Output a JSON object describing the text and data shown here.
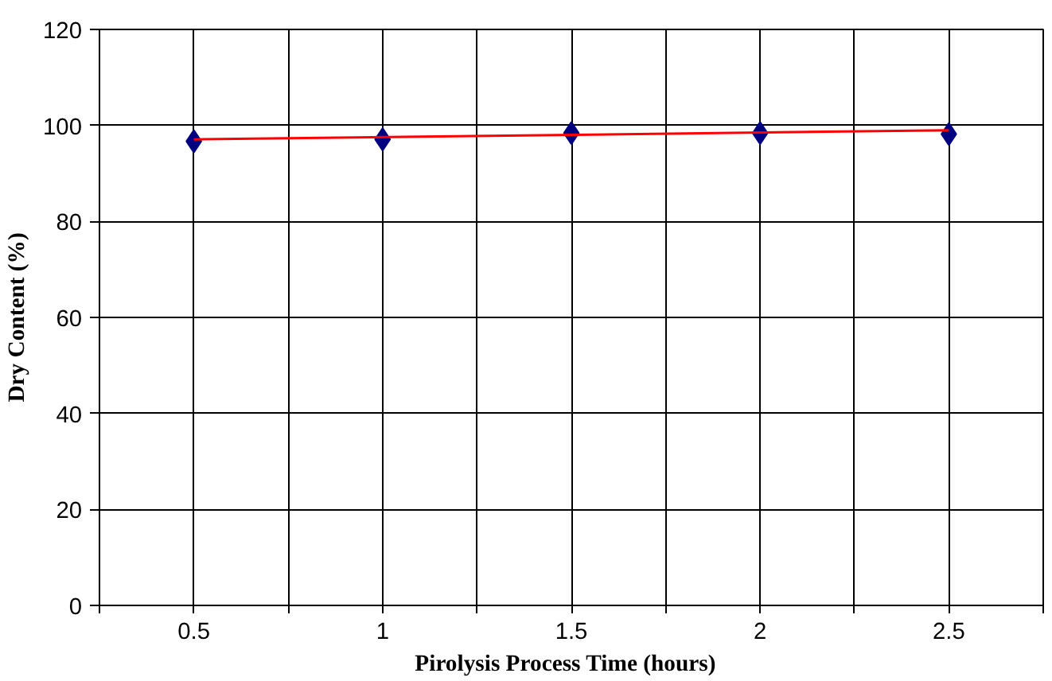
{
  "chart_data": {
    "type": "scatter",
    "xlabel": "Pirolysis  Process  Time (hours)",
    "ylabel": "Dry Content (%)",
    "xlim": [
      0.25,
      2.75
    ],
    "ylim": [
      0,
      120
    ],
    "xticks": [
      {
        "value": 0.25,
        "label": null
      },
      0.5,
      {
        "value": 0.75,
        "label": null
      },
      1,
      {
        "value": 1.25,
        "label": null
      },
      1.5,
      {
        "value": 1.75,
        "label": null
      },
      2,
      {
        "value": 2.25,
        "label": null
      },
      2.5,
      {
        "value": 2.75,
        "label": null
      }
    ],
    "yticks": [
      0,
      20,
      40,
      60,
      80,
      100,
      120
    ],
    "grid": true,
    "series": [
      {
        "marker": "diamond",
        "color": "#000080",
        "x": [
          0.5,
          1,
          1.5,
          2,
          2.5
        ],
        "values": [
          96.7,
          97.1,
          98.4,
          98.4,
          98.2
        ]
      },
      {
        "type": "line",
        "color": "#ff0000",
        "x": [
          0.5,
          2.5
        ],
        "values": [
          97.1,
          99.0
        ]
      }
    ]
  }
}
